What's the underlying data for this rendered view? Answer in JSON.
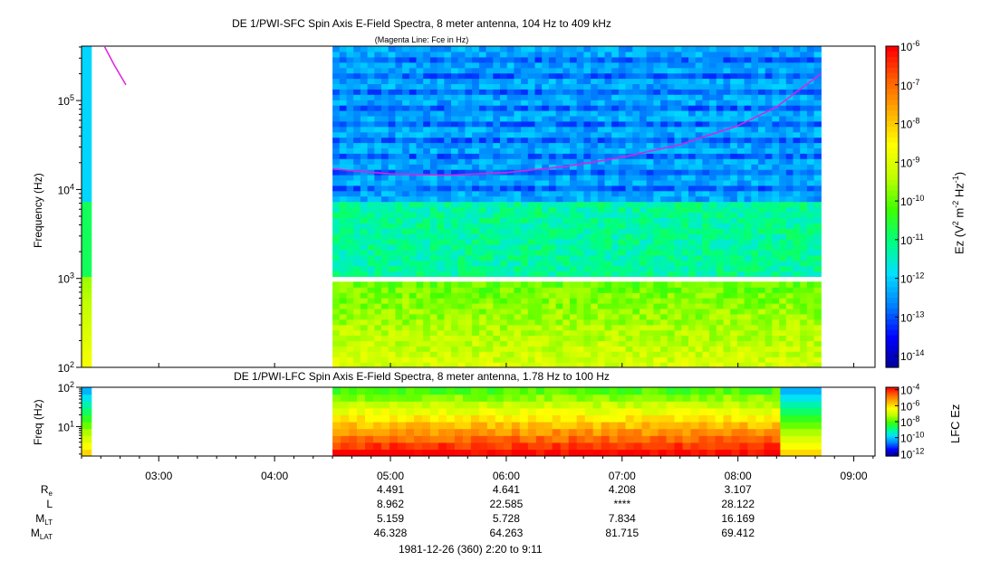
{
  "chart_data": [
    {
      "type": "heatmap",
      "title": "DE 1/PWI-SFC  Spin Axis E-Field Spectra, 8 meter antenna, 104 Hz to 409 kHz",
      "subtitle": "(Magenta Line: Fce in Hz)",
      "ylabel": "Frequency (Hz)",
      "y_scale": "log",
      "ylim": [
        100,
        409000
      ],
      "y_ticks": [
        {
          "v": 100,
          "exp": "2"
        },
        {
          "v": 1000,
          "exp": "3"
        },
        {
          "v": 10000,
          "exp": "4"
        },
        {
          "v": 100000,
          "exp": "5"
        }
      ],
      "xlim": [
        "02:20",
        "09:11"
      ],
      "colorbar": {
        "label_parts": [
          "Ez (V",
          "2",
          " m",
          "-2",
          " Hz",
          "-1",
          ")"
        ],
        "scale": "log",
        "range": [
          -14.3,
          -6
        ],
        "ticks": [
          {
            "v": -6,
            "exp": "-6"
          },
          {
            "v": -7,
            "exp": "-7"
          },
          {
            "v": -8,
            "exp": "-8"
          },
          {
            "v": -9,
            "exp": "-9"
          },
          {
            "v": -10,
            "exp": "-10"
          },
          {
            "v": -11,
            "exp": "-11"
          },
          {
            "v": -12,
            "exp": "-12"
          },
          {
            "v": -13,
            "exp": "-13"
          },
          {
            "v": -14,
            "exp": "-14"
          }
        ]
      },
      "data_segments": [
        {
          "start": "02:20",
          "end": "02:25",
          "note": "edge strip"
        },
        {
          "start": "04:30",
          "end": "08:43"
        }
      ],
      "data_gap_hz": [
        900,
        1000
      ],
      "fce_line": [
        {
          "t": "02:32",
          "f": 400000
        },
        {
          "t": "02:37",
          "f": 250000
        },
        {
          "t": "02:43",
          "f": 150000
        },
        {
          "t": "04:30",
          "f": 17000
        },
        {
          "t": "05:00",
          "f": 15000
        },
        {
          "t": "05:30",
          "f": 14500
        },
        {
          "t": "06:00",
          "f": 15500
        },
        {
          "t": "06:30",
          "f": 18000
        },
        {
          "t": "07:00",
          "f": 23000
        },
        {
          "t": "07:30",
          "f": 32000
        },
        {
          "t": "08:00",
          "f": 52000
        },
        {
          "t": "08:20",
          "f": 85000
        },
        {
          "t": "08:43",
          "f": 200000
        }
      ]
    },
    {
      "type": "heatmap",
      "title": "DE 1/PWI-LFC  Spin Axis E-Field Spectra, 8 meter antenna, 1.78 Hz to 100 Hz",
      "ylabel": "Freq (Hz)",
      "y_scale": "log",
      "ylim": [
        1.78,
        100
      ],
      "y_ticks": [
        {
          "v": 10,
          "base": "10",
          "exp": "1"
        },
        {
          "v": 100,
          "base": "10",
          "exp": "2"
        }
      ],
      "xlim": [
        "02:20",
        "09:11"
      ],
      "colorbar": {
        "label_parts": [
          "LFC Ez"
        ],
        "scale": "log",
        "range": [
          -12.3,
          -3.7
        ],
        "ticks": [
          {
            "v": -4,
            "exp": "-4"
          },
          {
            "v": -6,
            "exp": "-6"
          },
          {
            "v": -8,
            "exp": "-8"
          },
          {
            "v": -10,
            "exp": "-10"
          },
          {
            "v": -12,
            "exp": "-12"
          }
        ]
      },
      "data_segments": [
        {
          "start": "02:20",
          "end": "02:25",
          "note": "edge strip"
        },
        {
          "start": "04:30",
          "end": "08:43"
        }
      ]
    }
  ],
  "x_axis": {
    "ticks": [
      "03:00",
      "04:00",
      "05:00",
      "06:00",
      "07:00",
      "08:00",
      "09:00"
    ]
  },
  "ephemeris": {
    "labels": [
      {
        "main": "R",
        "sub": "e"
      },
      {
        "main": "L",
        "sub": ""
      },
      {
        "main": "M",
        "sub": "LT"
      },
      {
        "main": "M",
        "sub": "LAT"
      }
    ],
    "columns": [
      {
        "time": "05:00",
        "values": [
          "4.491",
          "8.962",
          "5.159",
          "46.328"
        ]
      },
      {
        "time": "06:00",
        "values": [
          "4.641",
          "22.585",
          "5.728",
          "64.263"
        ]
      },
      {
        "time": "07:00",
        "values": [
          "4.208",
          "****",
          "7.834",
          "81.715"
        ]
      },
      {
        "time": "08:00",
        "values": [
          "3.107",
          "28.122",
          "16.169",
          "69.412"
        ]
      }
    ]
  },
  "footer": "1981-12-26 (360) 2:20 to 9:11",
  "colors": {
    "fce_line": "#e020e0",
    "colormap": [
      "#000090",
      "#0000ff",
      "#0080ff",
      "#00e0ff",
      "#00ff80",
      "#40ff00",
      "#c0ff00",
      "#ffff00",
      "#ffb000",
      "#ff6000",
      "#ff0000"
    ]
  }
}
